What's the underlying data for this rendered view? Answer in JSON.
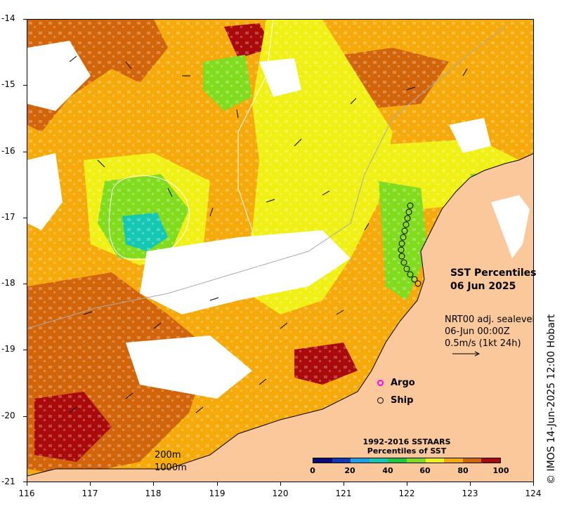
{
  "map": {
    "title_line1": "SST Percentiles",
    "title_line2": "06 Jun 2025",
    "info_line1": "NRT00 adj. sealevel",
    "info_line2": "06-Jun 00:00Z",
    "info_line3": "0.5m/s (1kt 24h)",
    "credit": "© IMOS 14-Jun-2025 12:00 Hobart",
    "lat_labels": [
      "-14",
      "-15",
      "-16",
      "-17",
      "-18",
      "-19",
      "-20",
      "-21"
    ],
    "lon_labels": [
      "116",
      "117",
      "118",
      "119",
      "120",
      "121",
      "122",
      "123",
      "124"
    ],
    "legend": {
      "argo_label": "Argo",
      "ship_label": "Ship"
    },
    "colorbar": {
      "title_line1": "1992-2016 SSTAARS",
      "title_line2": "Percentiles of SST",
      "tick_labels": [
        "0",
        "20",
        "40",
        "60",
        "80",
        "100"
      ],
      "colors": [
        "#0a0a78",
        "#1238b4",
        "#1ea0e6",
        "#14c8b4",
        "#1ec83c",
        "#82dc1e",
        "#f0f014",
        "#f5aa0a",
        "#d2640a",
        "#aa0a0a"
      ]
    },
    "depth_legend": {
      "line1": "200m",
      "line2": "1000m"
    },
    "colors": {
      "land": "#fac89b",
      "background": "#ffffff",
      "argo": "#ff00ff"
    }
  }
}
